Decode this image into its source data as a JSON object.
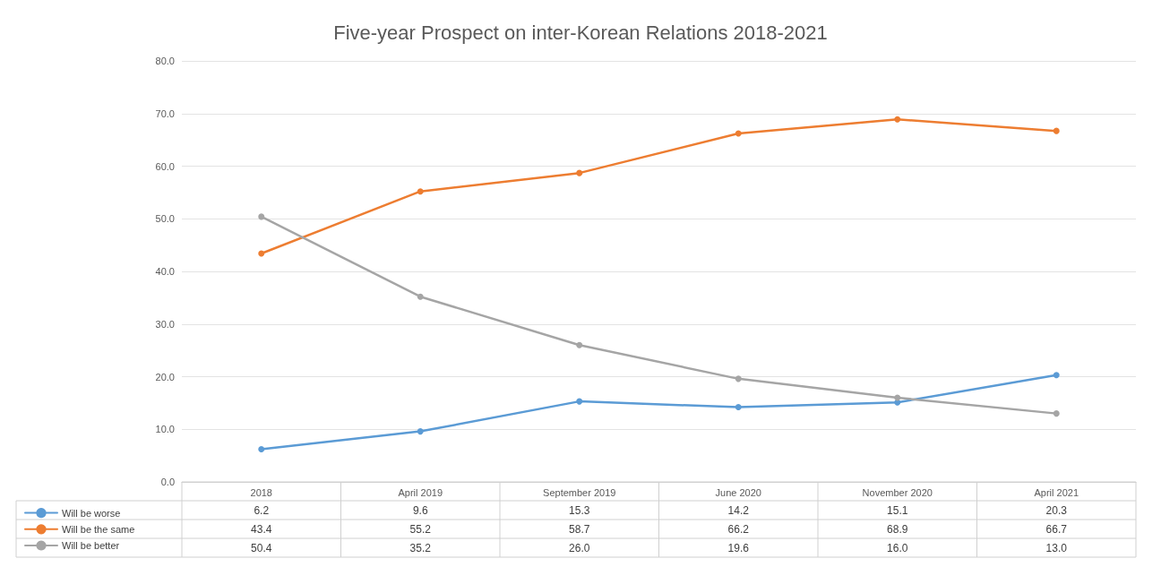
{
  "chart_data": {
    "type": "line",
    "title": "Five-year Prospect on inter-Korean Relations 2018-2021",
    "categories": [
      "2018",
      "April 2019",
      "September 2019",
      "June 2020",
      "November 2020",
      "April 2021"
    ],
    "series": [
      {
        "name": "Will be worse",
        "color": "#5b9bd5",
        "values": [
          6.2,
          9.6,
          15.3,
          14.2,
          15.1,
          20.3
        ],
        "value_labels": [
          "6.2",
          "9.6",
          "15.3",
          "14.2",
          "15.1",
          "20.3"
        ]
      },
      {
        "name": "Will be the same",
        "color": "#ed7d31",
        "values": [
          43.4,
          55.2,
          58.7,
          66.2,
          68.9,
          66.7
        ],
        "value_labels": [
          "43.4",
          "55.2",
          "58.7",
          "66.2",
          "68.9",
          "66.7"
        ]
      },
      {
        "name": "Will be better",
        "color": "#a5a5a5",
        "values": [
          50.4,
          35.2,
          26.0,
          19.6,
          16.0,
          13.0
        ],
        "value_labels": [
          "50.4",
          "35.2",
          "26.0",
          "19.6",
          "16.0",
          "13.0"
        ]
      }
    ],
    "ylim": [
      0,
      80
    ],
    "yticks": [
      {
        "value": 0,
        "label": "0.0"
      },
      {
        "value": 10,
        "label": "10.0"
      },
      {
        "value": 20,
        "label": "20.0"
      },
      {
        "value": 30,
        "label": "30.0"
      },
      {
        "value": 40,
        "label": "40.0"
      },
      {
        "value": 50,
        "label": "50.0"
      },
      {
        "value": 60,
        "label": "60.0"
      },
      {
        "value": 70,
        "label": "70.0"
      },
      {
        "value": 80,
        "label": "80.0"
      }
    ],
    "grid": "y",
    "legend": "bottom left",
    "marker": "circle",
    "line_style": "solid"
  }
}
